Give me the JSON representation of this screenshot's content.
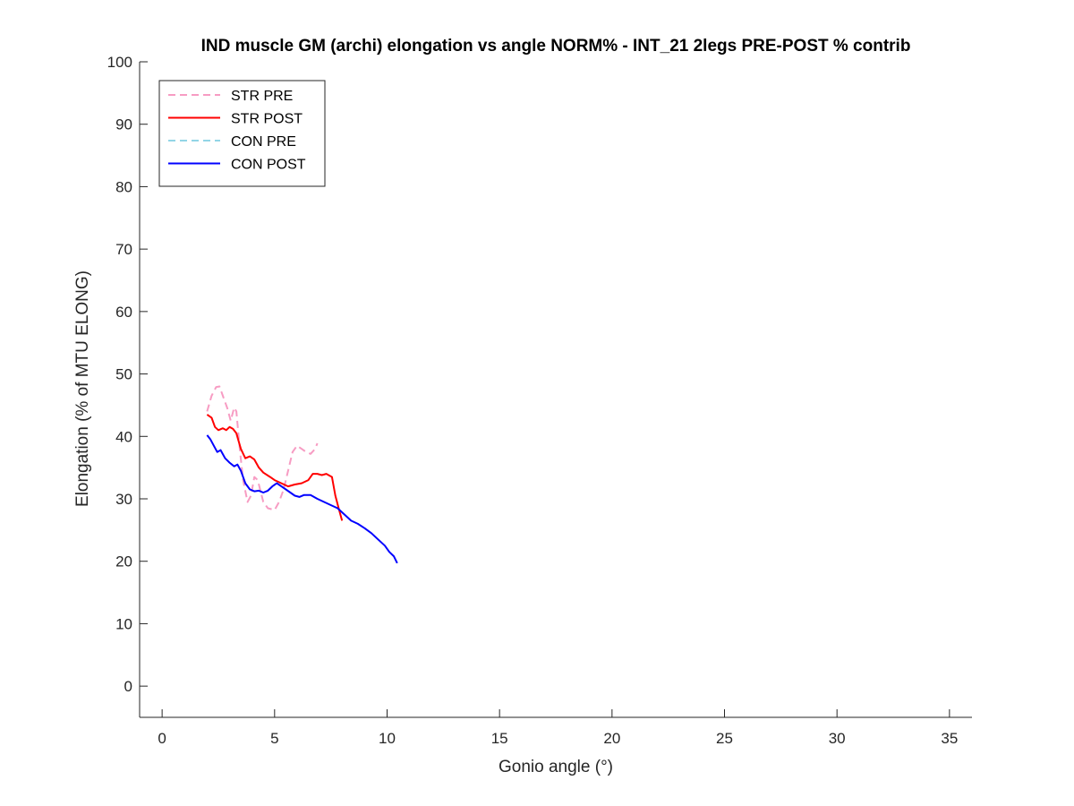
{
  "chart_data": {
    "type": "line",
    "title": "IND muscle GM (archi) elongation vs angle NORM% - INT_21 2legs PRE-POST % contrib",
    "xlabel": "Gonio angle (°)",
    "ylabel": "Elongation (% of MTU ELONG)",
    "xlim": [
      -1,
      36
    ],
    "ylim": [
      -5,
      100
    ],
    "xticks": [
      0,
      5,
      10,
      15,
      20,
      25,
      30,
      35
    ],
    "yticks": [
      0,
      10,
      20,
      30,
      40,
      50,
      60,
      70,
      80,
      90,
      100
    ],
    "grid": false,
    "legend_position": "top-left",
    "series": [
      {
        "name": "STR PRE",
        "color": "#f79cc3",
        "style": "dashed",
        "points": [
          [
            2.0,
            44.0
          ],
          [
            2.2,
            46.5
          ],
          [
            2.4,
            47.9
          ],
          [
            2.55,
            48.0
          ],
          [
            2.7,
            46.5
          ],
          [
            2.9,
            44.5
          ],
          [
            3.05,
            42.5
          ],
          [
            3.2,
            44.6
          ],
          [
            3.3,
            44.0
          ],
          [
            3.45,
            38.0
          ],
          [
            3.6,
            33.0
          ],
          [
            3.8,
            29.5
          ],
          [
            3.95,
            30.5
          ],
          [
            4.1,
            33.5
          ],
          [
            4.25,
            33.0
          ],
          [
            4.5,
            29.5
          ],
          [
            4.7,
            28.5
          ],
          [
            5.0,
            28.2
          ],
          [
            5.2,
            29.5
          ],
          [
            5.4,
            31.5
          ],
          [
            5.6,
            34.5
          ],
          [
            5.8,
            37.5
          ],
          [
            6.0,
            38.5
          ],
          [
            6.2,
            38.0
          ],
          [
            6.4,
            37.5
          ],
          [
            6.6,
            37.2
          ],
          [
            6.8,
            38.0
          ],
          [
            6.9,
            38.9
          ]
        ]
      },
      {
        "name": "STR POST",
        "color": "#ff0000",
        "style": "solid",
        "points": [
          [
            2.0,
            43.5
          ],
          [
            2.2,
            43.0
          ],
          [
            2.35,
            41.5
          ],
          [
            2.5,
            41.0
          ],
          [
            2.7,
            41.3
          ],
          [
            2.85,
            41.0
          ],
          [
            3.0,
            41.5
          ],
          [
            3.15,
            41.2
          ],
          [
            3.3,
            40.5
          ],
          [
            3.5,
            38.0
          ],
          [
            3.7,
            36.5
          ],
          [
            3.9,
            36.8
          ],
          [
            4.1,
            36.3
          ],
          [
            4.3,
            35.0
          ],
          [
            4.5,
            34.2
          ],
          [
            4.8,
            33.5
          ],
          [
            5.0,
            33.0
          ],
          [
            5.3,
            32.5
          ],
          [
            5.6,
            32.0
          ],
          [
            5.9,
            32.3
          ],
          [
            6.2,
            32.5
          ],
          [
            6.5,
            33.0
          ],
          [
            6.7,
            34.0
          ],
          [
            6.9,
            34.0
          ],
          [
            7.1,
            33.8
          ],
          [
            7.3,
            34.0
          ],
          [
            7.55,
            33.5
          ],
          [
            7.7,
            30.5
          ],
          [
            7.85,
            28.5
          ],
          [
            8.0,
            26.5
          ]
        ]
      },
      {
        "name": "CON PRE",
        "color": "#92d5e6",
        "style": "dashed",
        "points": []
      },
      {
        "name": "CON POST",
        "color": "#0000ff",
        "style": "solid",
        "points": [
          [
            2.0,
            40.2
          ],
          [
            2.15,
            39.5
          ],
          [
            2.3,
            38.5
          ],
          [
            2.45,
            37.5
          ],
          [
            2.6,
            37.8
          ],
          [
            2.8,
            36.5
          ],
          [
            3.0,
            35.8
          ],
          [
            3.2,
            35.2
          ],
          [
            3.35,
            35.5
          ],
          [
            3.5,
            34.5
          ],
          [
            3.7,
            32.5
          ],
          [
            3.9,
            31.5
          ],
          [
            4.1,
            31.2
          ],
          [
            4.3,
            31.3
          ],
          [
            4.5,
            31.0
          ],
          [
            4.7,
            31.3
          ],
          [
            4.9,
            32.0
          ],
          [
            5.1,
            32.5
          ],
          [
            5.3,
            32.0
          ],
          [
            5.5,
            31.5
          ],
          [
            5.7,
            31.0
          ],
          [
            5.9,
            30.5
          ],
          [
            6.1,
            30.3
          ],
          [
            6.3,
            30.6
          ],
          [
            6.6,
            30.6
          ],
          [
            6.9,
            30.0
          ],
          [
            7.2,
            29.5
          ],
          [
            7.5,
            29.0
          ],
          [
            7.8,
            28.5
          ],
          [
            8.1,
            27.5
          ],
          [
            8.4,
            26.5
          ],
          [
            8.7,
            26.0
          ],
          [
            9.0,
            25.3
          ],
          [
            9.3,
            24.5
          ],
          [
            9.6,
            23.5
          ],
          [
            9.9,
            22.5
          ],
          [
            10.1,
            21.5
          ],
          [
            10.3,
            20.8
          ],
          [
            10.45,
            19.7
          ]
        ]
      }
    ]
  }
}
